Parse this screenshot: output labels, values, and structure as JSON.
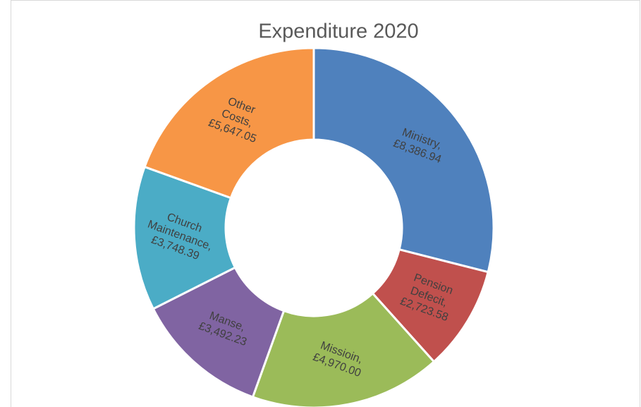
{
  "chart_data": {
    "type": "donut",
    "title": "Expenditure 2020",
    "categories": [
      "Ministry,",
      "Pension Defecit,",
      "Missioin,",
      "Manse,",
      "Church Maintenance,",
      "Other Costs,"
    ],
    "values": [
      8386.94,
      2723.58,
      4970.0,
      3492.23,
      3748.39,
      5647.05
    ],
    "value_labels": [
      "£8,386.94",
      "£2,723.58",
      "£4,970.00",
      "£3,492.23",
      "£3,748.39",
      "£5,647.05"
    ],
    "colors": [
      "#4f81bd",
      "#c0504d",
      "#9bbb59",
      "#8064a2",
      "#4bacc6",
      "#f79646"
    ]
  }
}
